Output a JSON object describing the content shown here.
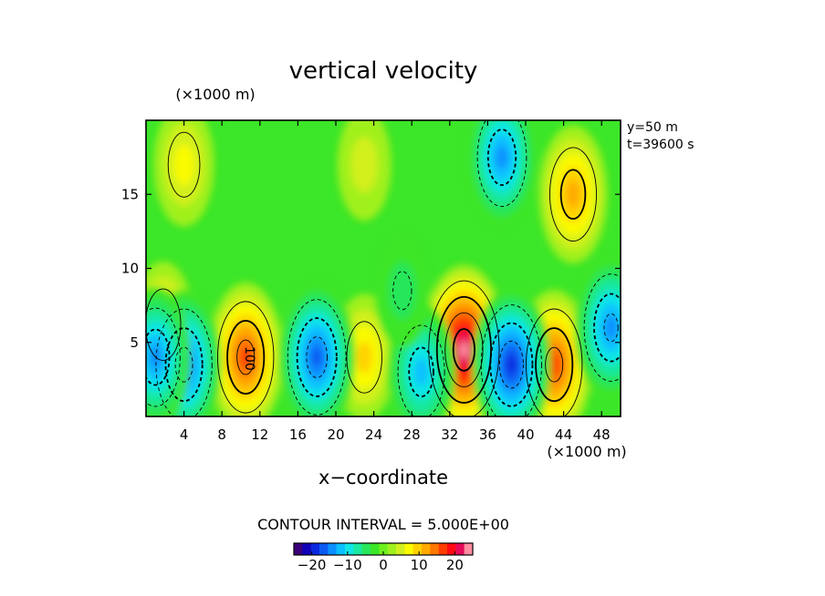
{
  "chart_data": {
    "type": "heatmap",
    "title": "vertical velocity",
    "xlabel": "x−coordinate",
    "x_unit": "(×1000 m)",
    "y_unit": "(×1000 m)",
    "xlim": [
      0,
      50
    ],
    "ylim": [
      0,
      20
    ],
    "xticks": [
      4,
      8,
      12,
      16,
      20,
      24,
      28,
      32,
      36,
      40,
      44,
      48
    ],
    "yticks": [
      5,
      10,
      15
    ],
    "annotation_y": "y=50  m",
    "annotation_t": "t=39600  s",
    "contour_interval": "CONTOUR INTERVAL = 5.000E+00",
    "contour_label": "100",
    "colorbar": {
      "range": [
        -25,
        25
      ],
      "ticks": [
        -20,
        -10,
        0,
        10,
        20
      ],
      "tick_labels": [
        "−20",
        "−10",
        "0",
        "10",
        "20"
      ],
      "colors": [
        "#3a007a",
        "#1000b8",
        "#0a28e0",
        "#0a5af2",
        "#0a90ff",
        "#0ac0ff",
        "#10e6e6",
        "#19e8a0",
        "#28e65a",
        "#3ce628",
        "#6ef01e",
        "#a0f01e",
        "#d2f01e",
        "#fafa00",
        "#ffd200",
        "#ffaa00",
        "#ff7800",
        "#ff3c00",
        "#ff0a14",
        "#e60a5a",
        "#ff8ca0"
      ]
    },
    "updrafts": [
      {
        "x": 1.8,
        "y": 6.2,
        "peak": 9
      },
      {
        "x": 10.5,
        "y": 4.0,
        "peak": 17
      },
      {
        "x": 23.0,
        "y": 4.0,
        "peak": 9
      },
      {
        "x": 33.5,
        "y": 4.5,
        "peak": 24
      },
      {
        "x": 43.0,
        "y": 3.5,
        "peak": 17
      },
      {
        "x": 45.0,
        "y": 15.0,
        "peak": 13
      },
      {
        "x": 4.0,
        "y": 17.0,
        "peak": 8
      },
      {
        "x": 23.0,
        "y": 17.0,
        "peak": 4
      }
    ],
    "downdrafts": [
      {
        "x": 4.0,
        "y": 3.5,
        "peak": -17
      },
      {
        "x": 1.0,
        "y": 4.0,
        "peak": -14
      },
      {
        "x": 18.0,
        "y": 4.0,
        "peak": -18
      },
      {
        "x": 29.0,
        "y": 3.0,
        "peak": -13
      },
      {
        "x": 38.5,
        "y": 3.5,
        "peak": -19
      },
      {
        "x": 49.0,
        "y": 6.0,
        "peak": -16
      },
      {
        "x": 37.5,
        "y": 17.5,
        "peak": -14
      },
      {
        "x": 27.0,
        "y": 8.5,
        "peak": -5
      }
    ]
  }
}
